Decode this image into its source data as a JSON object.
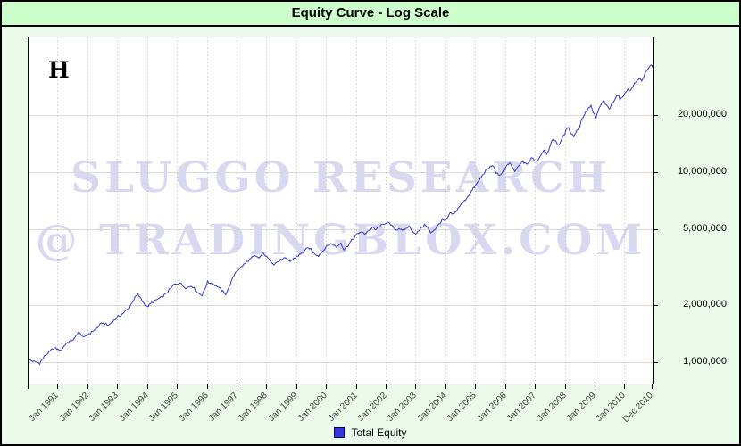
{
  "title_bar": {
    "title": "Equity Curve - Log Scale"
  },
  "plot": {
    "corner_label": "H",
    "watermark_line1": "SLUGGO RESEARCH",
    "watermark_line2": "@ TRADINGBLOX.COM"
  },
  "legend": {
    "label": "Total Equity",
    "marker_color": "#3535e0",
    "marker_border": "#00007a"
  },
  "colors": {
    "frame_background": "#ebfaeb",
    "title_background": "#ccffcc",
    "plot_background": "#ffffff",
    "grid_solid": "#d9d9d9",
    "grid_dotted": "#bdbdbd",
    "curve": "#3535d0",
    "watermark": "#d8d8f1"
  },
  "chart_data": {
    "type": "line",
    "title": "Equity Curve - Log Scale",
    "y_scale": "log",
    "y_axis_side": "right",
    "legend_position": "bottom-center",
    "grid": {
      "horizontal": "solid",
      "vertical": "dotted"
    },
    "watermark": [
      "SLUGGO RESEARCH",
      "@ TRADINGBLOX.COM"
    ],
    "annotations": [
      {
        "text": "H",
        "position": "top-left"
      }
    ],
    "x_range": [
      1990.0,
      2011.0
    ],
    "y_ticks": [
      {
        "label": "1,000,000",
        "value": 1000000
      },
      {
        "label": "2,000,000",
        "value": 2000000
      },
      {
        "label": "5,000,000",
        "value": 5000000
      },
      {
        "label": "10,000,000",
        "value": 10000000
      },
      {
        "label": "20,000,000",
        "value": 20000000
      }
    ],
    "x_ticks": [
      {
        "label": "Jan 1991",
        "year": 1991
      },
      {
        "label": "Jan 1992",
        "year": 1992
      },
      {
        "label": "Jan 1993",
        "year": 1993
      },
      {
        "label": "Jan 1994",
        "year": 1994
      },
      {
        "label": "Jan 1995",
        "year": 1995
      },
      {
        "label": "Jan 1996",
        "year": 1996
      },
      {
        "label": "Jan 1997",
        "year": 1997
      },
      {
        "label": "Jan 1998",
        "year": 1998
      },
      {
        "label": "Jan 1999",
        "year": 1999
      },
      {
        "label": "Jan 2000",
        "year": 2000
      },
      {
        "label": "Jan 2001",
        "year": 2001
      },
      {
        "label": "Jan 2002",
        "year": 2002
      },
      {
        "label": "Jan 2003",
        "year": 2003
      },
      {
        "label": "Jan 2004",
        "year": 2004
      },
      {
        "label": "Jan 2005",
        "year": 2005
      },
      {
        "label": "Jan 2006",
        "year": 2006
      },
      {
        "label": "Jan 2007",
        "year": 2007
      },
      {
        "label": "Jan 2008",
        "year": 2008
      },
      {
        "label": "Jan 2009",
        "year": 2009
      },
      {
        "label": "Jan 2010",
        "year": 2010
      },
      {
        "label": "Dec 2010",
        "year": 2010.92
      }
    ],
    "series": [
      {
        "name": "Total Equity",
        "color": "#3535d0",
        "points_format": "[decimal_year, equity_usd]",
        "points": [
          [
            1990.0,
            1030000
          ],
          [
            1990.2,
            1010000
          ],
          [
            1990.4,
            990000
          ],
          [
            1990.6,
            1090000
          ],
          [
            1990.9,
            1190000
          ],
          [
            1991.1,
            1150000
          ],
          [
            1991.3,
            1260000
          ],
          [
            1991.55,
            1320000
          ],
          [
            1991.7,
            1440000
          ],
          [
            1991.9,
            1350000
          ],
          [
            1992.1,
            1430000
          ],
          [
            1992.3,
            1500000
          ],
          [
            1992.5,
            1610000
          ],
          [
            1992.7,
            1560000
          ],
          [
            1993.0,
            1720000
          ],
          [
            1993.2,
            1810000
          ],
          [
            1993.4,
            1930000
          ],
          [
            1993.6,
            2200000
          ],
          [
            1993.7,
            2270000
          ],
          [
            1993.9,
            2040000
          ],
          [
            1994.0,
            1950000
          ],
          [
            1994.2,
            2080000
          ],
          [
            1994.5,
            2200000
          ],
          [
            1994.7,
            2350000
          ],
          [
            1994.9,
            2560000
          ],
          [
            1995.1,
            2620000
          ],
          [
            1995.3,
            2450000
          ],
          [
            1995.5,
            2530000
          ],
          [
            1995.7,
            2320000
          ],
          [
            1995.85,
            2250000
          ],
          [
            1996.03,
            2640000
          ],
          [
            1996.2,
            2590000
          ],
          [
            1996.4,
            2480000
          ],
          [
            1996.54,
            2350000
          ],
          [
            1996.63,
            2270000
          ],
          [
            1996.75,
            2480000
          ],
          [
            1996.87,
            2760000
          ],
          [
            1996.96,
            2970000
          ],
          [
            1997.2,
            3210000
          ],
          [
            1997.4,
            3430000
          ],
          [
            1997.6,
            3620000
          ],
          [
            1997.75,
            3540000
          ],
          [
            1997.9,
            3740000
          ],
          [
            1998.1,
            3460000
          ],
          [
            1998.25,
            3280000
          ],
          [
            1998.4,
            3390000
          ],
          [
            1998.6,
            3510000
          ],
          [
            1998.8,
            3390000
          ],
          [
            1999.0,
            3580000
          ],
          [
            1999.15,
            3700000
          ],
          [
            1999.3,
            3900000
          ],
          [
            1999.45,
            3990000
          ],
          [
            1999.6,
            3730000
          ],
          [
            1999.75,
            3650000
          ],
          [
            1999.9,
            3860000
          ],
          [
            2000.05,
            4120000
          ],
          [
            2000.2,
            4210000
          ],
          [
            2000.35,
            4030000
          ],
          [
            2000.5,
            4260000
          ],
          [
            2000.6,
            3900000
          ],
          [
            2000.75,
            4160000
          ],
          [
            2000.9,
            4440000
          ],
          [
            2001.0,
            4640000
          ],
          [
            2001.15,
            4850000
          ],
          [
            2001.3,
            4750000
          ],
          [
            2001.45,
            4960000
          ],
          [
            2001.55,
            5120000
          ],
          [
            2001.65,
            4960000
          ],
          [
            2001.8,
            5180000
          ],
          [
            2001.95,
            5350000
          ],
          [
            2002.05,
            5460000
          ],
          [
            2002.2,
            5230000
          ],
          [
            2002.35,
            4960000
          ],
          [
            2002.45,
            5070000
          ],
          [
            2002.55,
            4900000
          ],
          [
            2002.7,
            5070000
          ],
          [
            2002.8,
            5180000
          ],
          [
            2002.9,
            4900000
          ],
          [
            2003.0,
            4690000
          ],
          [
            2003.15,
            5010000
          ],
          [
            2003.3,
            5290000
          ],
          [
            2003.4,
            5120000
          ],
          [
            2003.5,
            4800000
          ],
          [
            2003.65,
            5010000
          ],
          [
            2003.8,
            5350000
          ],
          [
            2003.9,
            5630000
          ],
          [
            2004.0,
            5510000
          ],
          [
            2004.15,
            6030000
          ],
          [
            2004.3,
            6030000
          ],
          [
            2004.45,
            6560000
          ],
          [
            2004.6,
            6930000
          ],
          [
            2004.75,
            7450000
          ],
          [
            2004.9,
            8040000
          ],
          [
            2005.05,
            8660000
          ],
          [
            2005.2,
            9400000
          ],
          [
            2005.35,
            10180000
          ],
          [
            2005.5,
            10630000
          ],
          [
            2005.6,
            10860000
          ],
          [
            2005.7,
            9950000
          ],
          [
            2005.8,
            9530000
          ],
          [
            2005.95,
            10180000
          ],
          [
            2006.05,
            10750000
          ],
          [
            2006.15,
            11120000
          ],
          [
            2006.25,
            10630000
          ],
          [
            2006.32,
            10060000
          ],
          [
            2006.45,
            10750000
          ],
          [
            2006.6,
            11370000
          ],
          [
            2006.7,
            11000000
          ],
          [
            2006.8,
            11250000
          ],
          [
            2006.9,
            11900000
          ],
          [
            2007.05,
            11370000
          ],
          [
            2007.2,
            12300000
          ],
          [
            2007.3,
            13100000
          ],
          [
            2007.4,
            12560000
          ],
          [
            2007.5,
            13550000
          ],
          [
            2007.6,
            14950000
          ],
          [
            2007.7,
            14460000
          ],
          [
            2007.8,
            13860000
          ],
          [
            2007.9,
            14950000
          ],
          [
            2008.0,
            15950000
          ],
          [
            2008.1,
            17200000
          ],
          [
            2008.2,
            16300000
          ],
          [
            2008.3,
            15400000
          ],
          [
            2008.4,
            16500000
          ],
          [
            2008.5,
            17400000
          ],
          [
            2008.55,
            18600000
          ],
          [
            2008.62,
            19700000
          ],
          [
            2008.7,
            20600000
          ],
          [
            2008.8,
            21700000
          ],
          [
            2008.88,
            22400000
          ],
          [
            2008.95,
            20600000
          ],
          [
            2009.05,
            19300000
          ],
          [
            2009.12,
            21000000
          ],
          [
            2009.2,
            22400000
          ],
          [
            2009.3,
            23700000
          ],
          [
            2009.4,
            22400000
          ],
          [
            2009.5,
            21500000
          ],
          [
            2009.6,
            23100000
          ],
          [
            2009.7,
            24600000
          ],
          [
            2009.78,
            25600000
          ],
          [
            2009.85,
            24000000
          ],
          [
            2009.95,
            25100000
          ],
          [
            2010.05,
            26300000
          ],
          [
            2010.12,
            27600000
          ],
          [
            2010.2,
            26700000
          ],
          [
            2010.3,
            28600000
          ],
          [
            2010.4,
            29900000
          ],
          [
            2010.5,
            31300000
          ],
          [
            2010.58,
            30200000
          ],
          [
            2010.7,
            33100000
          ],
          [
            2010.8,
            34900000
          ],
          [
            2010.9,
            36900000
          ],
          [
            2010.95,
            35400000
          ],
          [
            2011.0,
            36600000
          ]
        ]
      }
    ]
  }
}
